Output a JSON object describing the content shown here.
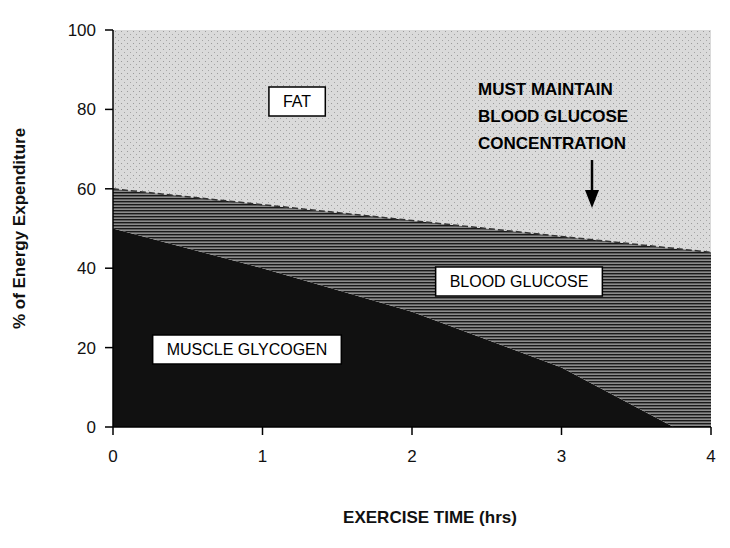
{
  "chart_data": {
    "type": "area",
    "stacked": true,
    "grid": false,
    "x_label": "EXERCISE TIME (hrs)",
    "y_label": "% of Energy Expenditure",
    "x": [
      0,
      1,
      2,
      3,
      3.75,
      4
    ],
    "xlim": [
      0,
      4
    ],
    "xticks": [
      0,
      1,
      2,
      3,
      4
    ],
    "ylim": [
      0,
      100
    ],
    "yticks": [
      0,
      20,
      40,
      60,
      80,
      100
    ],
    "series": [
      {
        "name": "MUSCLE GLYCOGEN",
        "color": "#111111",
        "values": [
          50,
          40,
          29,
          15,
          0,
          0
        ]
      },
      {
        "name": "BLOOD GLUCOSE",
        "color": "#8c8c8c",
        "values": [
          10,
          16,
          23,
          33,
          45,
          44
        ]
      },
      {
        "name": "FAT",
        "color": "#dadada",
        "values": [
          40,
          44,
          48,
          52,
          55,
          56
        ]
      }
    ],
    "annotations": [
      "MUST MAINTAIN",
      "BLOOD GLUCOSE",
      "CONCENTRATION"
    ]
  }
}
